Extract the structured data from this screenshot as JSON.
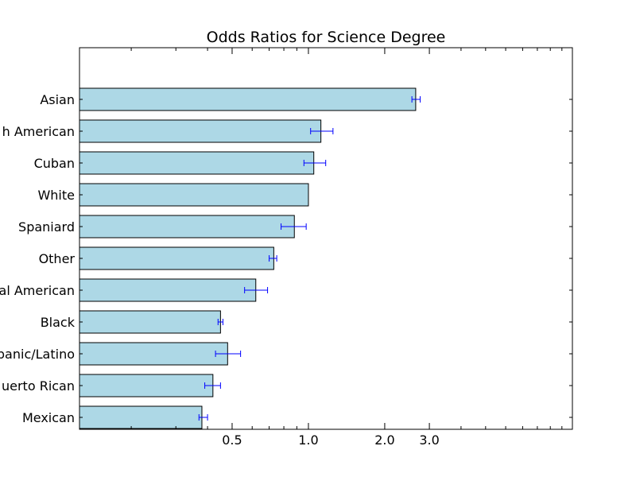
{
  "chart_data": {
    "type": "bar",
    "orientation": "horizontal",
    "title": "Odds Ratios for Science Degree",
    "xlabel": "",
    "ylabel": "",
    "x_scale": "log",
    "xlim": [
      0.125,
      11
    ],
    "x_ticks": [
      0.5,
      1.0,
      2.0,
      3.0
    ],
    "x_tick_labels": [
      "0.5",
      "1.0",
      "2.0",
      "3.0"
    ],
    "grid": false,
    "legend": "none",
    "categories": [
      "Mexican",
      "Puerto Rican",
      "Hispanic/Latino",
      "Black",
      "Central American",
      "Other",
      "Spaniard",
      "White",
      "Cuban",
      "South American",
      "Asian"
    ],
    "category_labels": [
      "Mexican",
      "uerto Rican",
      "panic/Latino",
      "Black",
      "al American",
      "Other",
      "Spaniard",
      "White",
      "Cuban",
      "h American",
      "Asian"
    ],
    "values": [
      0.38,
      0.42,
      0.48,
      0.45,
      0.62,
      0.73,
      0.88,
      1.0,
      1.05,
      1.12,
      2.65
    ],
    "error_low": [
      0.37,
      0.39,
      0.43,
      0.44,
      0.56,
      0.7,
      0.78,
      1.0,
      0.96,
      1.02,
      2.56
    ],
    "error_high": [
      0.4,
      0.45,
      0.54,
      0.46,
      0.69,
      0.75,
      0.98,
      1.0,
      1.17,
      1.25,
      2.76
    ],
    "bar_color": "#add8e6",
    "bar_edge_color": "#000000",
    "error_color": "#0000ff"
  }
}
